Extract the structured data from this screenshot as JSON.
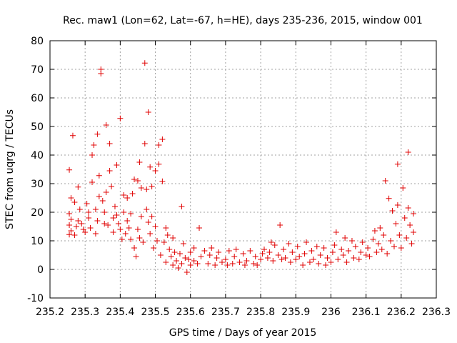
{
  "chart_data": {
    "type": "scatter",
    "title": "Rec. maw1 (Lon=62, Lat=-67, h=HE), days 235-236, 2015, window 001",
    "xlabel": "GPS time / Days of year 2015",
    "ylabel": "STEC from uqrg / TECUs",
    "xlim": [
      235.2,
      236.3
    ],
    "ylim": [
      -10,
      80
    ],
    "xticks": [
      "235.2",
      "235.3",
      "235.4",
      "235.5",
      "235.6",
      "235.7",
      "235.8",
      "235.9",
      "236",
      "236.1",
      "236.2",
      "236.3"
    ],
    "yticks": [
      "-10",
      "0",
      "10",
      "20",
      "30",
      "40",
      "50",
      "60",
      "70",
      "80"
    ],
    "grid": true,
    "marker": "+",
    "color": "#e00000",
    "points": [
      [
        235.255,
        34.8
      ],
      [
        235.26,
        25.0
      ],
      [
        235.265,
        46.8
      ],
      [
        235.27,
        23.5
      ],
      [
        235.28,
        28.8
      ],
      [
        235.255,
        19.5
      ],
      [
        235.26,
        17.5
      ],
      [
        235.255,
        15.5
      ],
      [
        235.26,
        13.5
      ],
      [
        235.255,
        12.2
      ],
      [
        235.27,
        12.0
      ],
      [
        235.275,
        15.0
      ],
      [
        235.28,
        17.0
      ],
      [
        235.285,
        21.0
      ],
      [
        235.29,
        16.0
      ],
      [
        235.295,
        14.0
      ],
      [
        235.3,
        13.0
      ],
      [
        235.305,
        23.0
      ],
      [
        235.31,
        20.0
      ],
      [
        235.31,
        18.0
      ],
      [
        235.315,
        14.5
      ],
      [
        235.32,
        30.5
      ],
      [
        235.32,
        40.0
      ],
      [
        235.325,
        43.5
      ],
      [
        235.33,
        21.0
      ],
      [
        235.33,
        12.5
      ],
      [
        235.335,
        17.0
      ],
      [
        235.34,
        25.5
      ],
      [
        235.34,
        32.8
      ],
      [
        235.335,
        47.3
      ],
      [
        235.345,
        70.0
      ],
      [
        235.345,
        68.5
      ],
      [
        235.35,
        24.0
      ],
      [
        235.355,
        20.0
      ],
      [
        235.355,
        16.0
      ],
      [
        235.36,
        27.0
      ],
      [
        235.36,
        50.5
      ],
      [
        235.365,
        15.5
      ],
      [
        235.37,
        44.0
      ],
      [
        235.37,
        34.5
      ],
      [
        235.375,
        29.0
      ],
      [
        235.38,
        18.0
      ],
      [
        235.38,
        13.0
      ],
      [
        235.385,
        22.0
      ],
      [
        235.39,
        36.5
      ],
      [
        235.39,
        19.0
      ],
      [
        235.395,
        16.0
      ],
      [
        235.4,
        14.0
      ],
      [
        235.4,
        52.8
      ],
      [
        235.405,
        10.5
      ],
      [
        235.41,
        26.0
      ],
      [
        235.41,
        20.0
      ],
      [
        235.415,
        12.5
      ],
      [
        235.42,
        25.0
      ],
      [
        235.42,
        17.0
      ],
      [
        235.425,
        14.5
      ],
      [
        235.43,
        19.5
      ],
      [
        235.43,
        10.5
      ],
      [
        235.435,
        26.5
      ],
      [
        235.44,
        31.5
      ],
      [
        235.44,
        7.5
      ],
      [
        235.445,
        4.5
      ],
      [
        235.45,
        31.0
      ],
      [
        235.45,
        14.0
      ],
      [
        235.455,
        37.5
      ],
      [
        235.455,
        11.0
      ],
      [
        235.46,
        28.5
      ],
      [
        235.46,
        18.5
      ],
      [
        235.465,
        9.5
      ],
      [
        235.47,
        72.2
      ],
      [
        235.47,
        44.0
      ],
      [
        235.475,
        28.0
      ],
      [
        235.475,
        21.0
      ],
      [
        235.48,
        16.5
      ],
      [
        235.48,
        55.0
      ],
      [
        235.485,
        35.8
      ],
      [
        235.485,
        12.5
      ],
      [
        235.49,
        29.0
      ],
      [
        235.49,
        18.5
      ],
      [
        235.495,
        7.5
      ],
      [
        235.5,
        34.5
      ],
      [
        235.5,
        15.0
      ],
      [
        235.505,
        10.0
      ],
      [
        235.51,
        43.5
      ],
      [
        235.51,
        36.8
      ],
      [
        235.515,
        5.0
      ],
      [
        235.52,
        45.5
      ],
      [
        235.52,
        30.8
      ],
      [
        235.525,
        9.5
      ],
      [
        235.53,
        14.5
      ],
      [
        235.53,
        2.5
      ],
      [
        235.535,
        12.0
      ],
      [
        235.54,
        7.0
      ],
      [
        235.545,
        4.5
      ],
      [
        235.55,
        11.0
      ],
      [
        235.55,
        1.5
      ],
      [
        235.555,
        6.0
      ],
      [
        235.56,
        3.0
      ],
      [
        235.565,
        0.5
      ],
      [
        235.57,
        5.5
      ],
      [
        235.575,
        22.0
      ],
      [
        235.575,
        2.0
      ],
      [
        235.58,
        9.0
      ],
      [
        235.585,
        4.0
      ],
      [
        235.59,
        -1.0
      ],
      [
        235.595,
        3.5
      ],
      [
        235.6,
        6.0
      ],
      [
        235.6,
        1.5
      ],
      [
        235.61,
        7.5
      ],
      [
        235.61,
        3.0
      ],
      [
        235.62,
        2.0
      ],
      [
        235.625,
        14.5
      ],
      [
        235.63,
        4.5
      ],
      [
        235.64,
        6.5
      ],
      [
        235.65,
        2.0
      ],
      [
        235.655,
        5.0
      ],
      [
        235.66,
        7.5
      ],
      [
        235.67,
        1.5
      ],
      [
        235.675,
        4.0
      ],
      [
        235.68,
        6.0
      ],
      [
        235.69,
        2.5
      ],
      [
        235.7,
        3.5
      ],
      [
        235.705,
        1.5
      ],
      [
        235.71,
        6.5
      ],
      [
        235.72,
        2.0
      ],
      [
        235.725,
        4.5
      ],
      [
        235.73,
        7.0
      ],
      [
        235.74,
        2.5
      ],
      [
        235.75,
        5.5
      ],
      [
        235.755,
        1.5
      ],
      [
        235.76,
        3.0
      ],
      [
        235.77,
        6.5
      ],
      [
        235.78,
        2.0
      ],
      [
        235.785,
        4.5
      ],
      [
        235.79,
        1.5
      ],
      [
        235.8,
        3.5
      ],
      [
        235.805,
        5.5
      ],
      [
        235.81,
        7.0
      ],
      [
        235.82,
        4.0
      ],
      [
        235.825,
        6.0
      ],
      [
        235.83,
        9.5
      ],
      [
        235.835,
        3.0
      ],
      [
        235.84,
        8.5
      ],
      [
        235.85,
        5.0
      ],
      [
        235.855,
        15.5
      ],
      [
        235.86,
        3.5
      ],
      [
        235.865,
        7.0
      ],
      [
        235.87,
        4.0
      ],
      [
        235.88,
        9.0
      ],
      [
        235.885,
        2.5
      ],
      [
        235.89,
        6.0
      ],
      [
        235.9,
        3.5
      ],
      [
        235.905,
        8.0
      ],
      [
        235.91,
        4.5
      ],
      [
        235.92,
        1.5
      ],
      [
        235.925,
        5.5
      ],
      [
        235.93,
        9.5
      ],
      [
        235.94,
        2.5
      ],
      [
        235.945,
        6.5
      ],
      [
        235.95,
        3.5
      ],
      [
        235.96,
        8.0
      ],
      [
        235.965,
        2.0
      ],
      [
        235.97,
        5.0
      ],
      [
        235.98,
        7.5
      ],
      [
        235.985,
        1.5
      ],
      [
        235.99,
        4.0
      ],
      [
        236.0,
        2.5
      ],
      [
        236.005,
        6.0
      ],
      [
        236.01,
        8.5
      ],
      [
        236.015,
        13.0
      ],
      [
        236.02,
        3.5
      ],
      [
        236.03,
        7.0
      ],
      [
        236.035,
        5.0
      ],
      [
        236.04,
        11.0
      ],
      [
        236.045,
        2.5
      ],
      [
        236.05,
        6.5
      ],
      [
        236.06,
        10.0
      ],
      [
        236.065,
        4.0
      ],
      [
        236.07,
        8.0
      ],
      [
        236.08,
        3.5
      ],
      [
        236.085,
        6.0
      ],
      [
        236.09,
        9.5
      ],
      [
        236.1,
        5.0
      ],
      [
        236.105,
        7.5
      ],
      [
        236.11,
        4.5
      ],
      [
        236.12,
        10.5
      ],
      [
        236.125,
        13.5
      ],
      [
        236.13,
        6.0
      ],
      [
        236.135,
        9.0
      ],
      [
        236.14,
        14.5
      ],
      [
        236.145,
        7.0
      ],
      [
        236.15,
        12.0
      ],
      [
        236.155,
        31.0
      ],
      [
        236.16,
        5.5
      ],
      [
        236.165,
        24.8
      ],
      [
        236.17,
        10.0
      ],
      [
        236.175,
        20.5
      ],
      [
        236.18,
        8.0
      ],
      [
        236.185,
        16.0
      ],
      [
        236.19,
        36.8
      ],
      [
        236.19,
        22.5
      ],
      [
        236.195,
        12.0
      ],
      [
        236.2,
        7.5
      ],
      [
        236.205,
        28.5
      ],
      [
        236.21,
        18.0
      ],
      [
        236.215,
        11.0
      ],
      [
        236.22,
        41.0
      ],
      [
        236.22,
        21.5
      ],
      [
        236.225,
        15.5
      ],
      [
        236.23,
        9.0
      ],
      [
        236.235,
        19.5
      ],
      [
        236.235,
        13.0
      ]
    ]
  }
}
